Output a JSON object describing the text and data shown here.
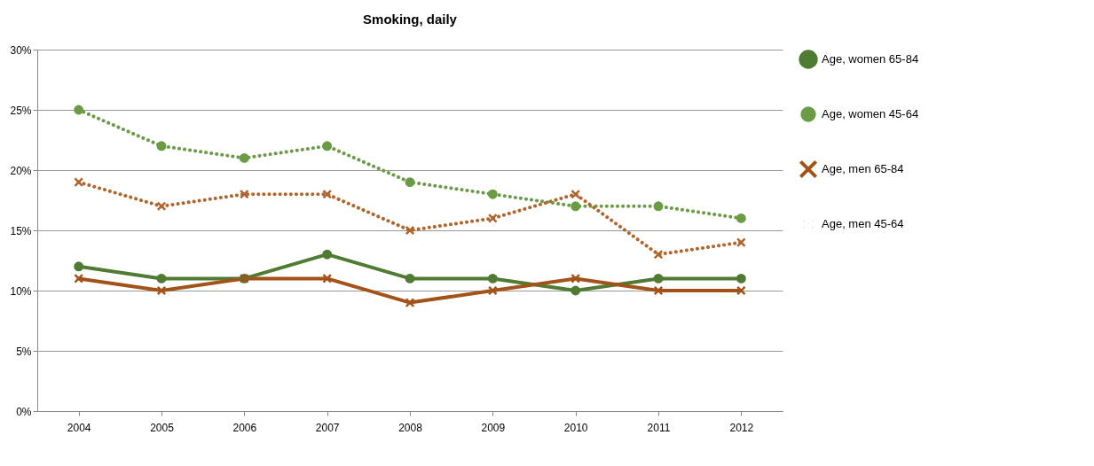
{
  "chart_data": {
    "type": "line",
    "title": "Smoking, daily",
    "categories": [
      "2004",
      "2005",
      "2006",
      "2007",
      "2008",
      "2009",
      "2010",
      "2011",
      "2012"
    ],
    "series": [
      {
        "name": "Age, women 65-84",
        "color": "#4f7b32",
        "line_style": "solid",
        "marker": "circle",
        "values": [
          12,
          11,
          11,
          13,
          11,
          11,
          10,
          11,
          11
        ]
      },
      {
        "name": "Age, women 45-64",
        "color": "#6a9c45",
        "line_style": "dotted",
        "marker": "circle",
        "values": [
          25,
          22,
          21,
          22,
          19,
          18,
          17,
          17,
          16
        ]
      },
      {
        "name": "Age, men 65-84",
        "color": "#a3531a",
        "line_style": "solid",
        "marker": "cross",
        "values": [
          11,
          10,
          11,
          11,
          9,
          10,
          11,
          10,
          10
        ]
      },
      {
        "name": "Age, men 45-64",
        "color": "#b0652c",
        "line_style": "dotted",
        "marker": "cross",
        "values": [
          19,
          17,
          18,
          18,
          15,
          16,
          18,
          13,
          14
        ]
      }
    ],
    "ylim": [
      0,
      30
    ],
    "yticks": [
      {
        "value": 0,
        "label": "0%"
      },
      {
        "value": 5,
        "label": "5%"
      },
      {
        "value": 10,
        "label": "10%"
      },
      {
        "value": 15,
        "label": "15%"
      },
      {
        "value": 20,
        "label": "20%"
      },
      {
        "value": 25,
        "label": "25%"
      },
      {
        "value": 30,
        "label": "30%"
      }
    ],
    "grid": "y",
    "legend": "right"
  }
}
